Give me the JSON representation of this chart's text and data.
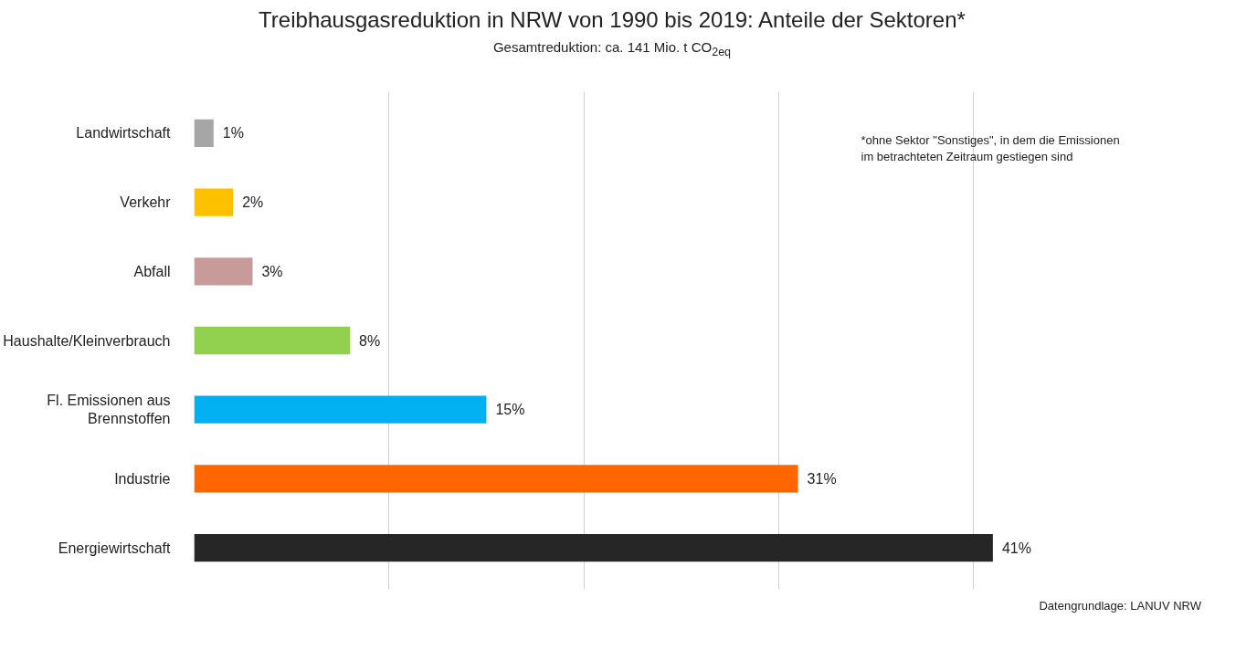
{
  "chart_data": {
    "type": "bar",
    "orientation": "horizontal",
    "title": "Treibhausgasreduktion in NRW von 1990 bis 2019: Anteile der Sektoren*",
    "subtitle": "Gesamtreduktion: ca. 141 Mio. t CO$_{2eq}$",
    "categories": [
      "Landwirtschaft",
      "Verkehr",
      "Abfall",
      "Haushalte/Kleinverbrauch",
      "Fl. Emissionen aus Brennstoffen",
      "Industrie",
      "Energiewirtschaft"
    ],
    "values": [
      1,
      2,
      3,
      8,
      15,
      31,
      41
    ],
    "colors": [
      "#a6a6a6",
      "#ffc000",
      "#c99a9a",
      "#92d050",
      "#00b0f0",
      "#ff6600",
      "#262626"
    ],
    "value_labels": [
      "1%",
      "2%",
      "3%",
      "8%",
      "15%",
      "31%",
      "41%"
    ],
    "grid": "x",
    "tick_labels": "y",
    "annotations": [
      "*ohne Sektor \"Sonstiges\", in dem die Emissionen im betrachteten Zeitraum gestiegen sind",
      "Datengrundlage: LANUV NRW"
    ]
  }
}
